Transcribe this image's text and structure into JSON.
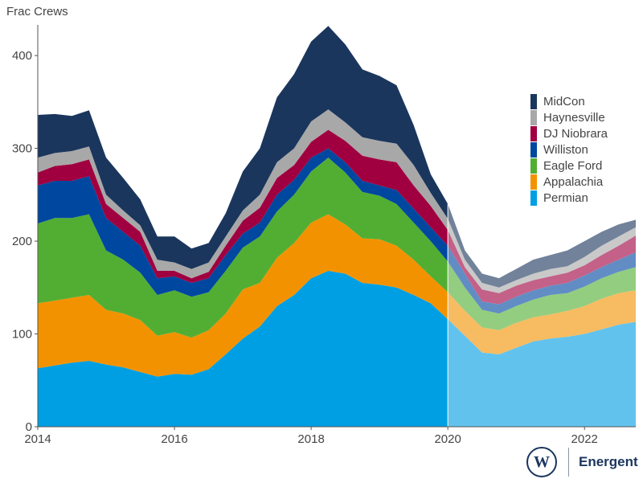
{
  "chart_data": {
    "type": "area",
    "stacked": true,
    "ylabel": "Frac Crews",
    "xlabel": "",
    "xlim": [
      2014,
      2022.75
    ],
    "ylim": [
      0,
      433
    ],
    "x_ticks": [
      2014,
      2016,
      2018,
      2020,
      2022
    ],
    "y_ticks": [
      0,
      100,
      200,
      300,
      400
    ],
    "forecast_start": 2020,
    "legend_position": "right",
    "grid": false,
    "x": [
      2014,
      2014.25,
      2014.5,
      2014.75,
      2015,
      2015.25,
      2015.5,
      2015.75,
      2016,
      2016.25,
      2016.5,
      2016.75,
      2017,
      2017.25,
      2017.5,
      2017.75,
      2018,
      2018.25,
      2018.5,
      2018.75,
      2019,
      2019.25,
      2019.5,
      2019.75,
      2020,
      2020.25,
      2020.5,
      2020.75,
      2021,
      2021.25,
      2021.5,
      2021.75,
      2022,
      2022.25,
      2022.5,
      2022.75
    ],
    "series": [
      {
        "name": "Permian",
        "color": "#009fe3",
        "values": [
          63,
          66,
          69,
          71,
          67,
          64,
          59,
          54,
          57,
          56,
          62,
          78,
          95,
          108,
          130,
          142,
          160,
          168,
          165,
          155,
          153,
          150,
          142,
          133,
          116,
          98,
          80,
          78,
          85,
          92,
          95,
          97,
          100,
          105,
          110,
          113
        ]
      },
      {
        "name": "Appalachia",
        "color": "#f39200",
        "values": [
          70,
          70,
          70,
          71,
          59,
          58,
          56,
          44,
          45,
          40,
          42,
          44,
          53,
          47,
          52,
          56,
          60,
          61,
          53,
          48,
          49,
          45,
          38,
          29,
          29,
          27,
          27,
          26,
          27,
          26,
          26,
          28,
          30,
          33,
          34,
          34
        ]
      },
      {
        "name": "Eagle Ford",
        "color": "#52ae32",
        "values": [
          86,
          89,
          86,
          87,
          64,
          58,
          51,
          44,
          45,
          44,
          41,
          46,
          45,
          50,
          50,
          52,
          55,
          61,
          56,
          50,
          47,
          45,
          40,
          38,
          33,
          25,
          19,
          18,
          18,
          19,
          21,
          19,
          21,
          22,
          23,
          25
        ]
      },
      {
        "name": "Williston",
        "color": "#0047a0",
        "values": [
          41,
          40,
          40,
          41,
          35,
          30,
          29,
          18,
          15,
          15,
          15,
          17,
          15,
          15,
          18,
          16,
          15,
          10,
          11,
          12,
          11,
          15,
          15,
          15,
          17,
          15,
          9,
          10,
          10,
          10,
          10,
          11,
          12,
          12,
          13,
          16
        ]
      },
      {
        "name": "DJ Niobrara",
        "color": "#a00040",
        "values": [
          14,
          16,
          18,
          18,
          15,
          15,
          15,
          8,
          6,
          5,
          7,
          10,
          14,
          16,
          18,
          16,
          17,
          20,
          23,
          27,
          28,
          30,
          25,
          23,
          17,
          7,
          13,
          12,
          12,
          11,
          10,
          11,
          11,
          13,
          15,
          18
        ]
      },
      {
        "name": "Haynesville",
        "color": "#a8a8a8",
        "values": [
          16,
          14,
          14,
          14,
          10,
          8,
          7,
          12,
          9,
          10,
          10,
          10,
          11,
          14,
          17,
          18,
          22,
          22,
          20,
          20,
          20,
          20,
          22,
          14,
          12,
          8,
          7,
          6,
          6,
          7,
          8,
          7,
          9,
          10,
          10,
          9
        ]
      },
      {
        "name": "MidCon",
        "color": "#1b365d",
        "values": [
          46,
          42,
          38,
          39,
          40,
          35,
          28,
          25,
          28,
          22,
          21,
          25,
          42,
          50,
          70,
          80,
          86,
          90,
          84,
          73,
          70,
          63,
          43,
          20,
          16,
          10,
          10,
          10,
          12,
          15,
          15,
          17,
          17,
          15,
          13,
          8
        ]
      }
    ]
  },
  "brand": {
    "name": "Energent",
    "mark": "W"
  }
}
